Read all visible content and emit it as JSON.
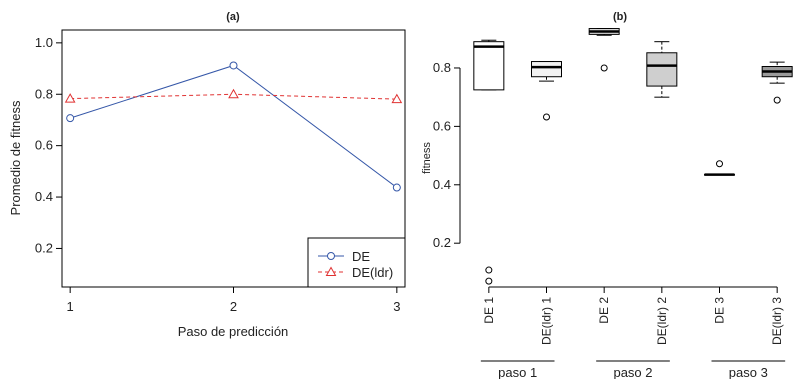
{
  "chart_data": [
    {
      "type": "line",
      "title": "(a)",
      "xlabel": "Paso de predicción",
      "ylabel": "Promedio de fitness",
      "x": [
        1,
        2,
        3
      ],
      "x_tick_labels": [
        "1",
        "2",
        "3"
      ],
      "y_ticks": [
        0.2,
        0.4,
        0.6,
        0.8,
        1.0
      ],
      "y_tick_labels": [
        "0.2",
        "0.4",
        "0.6",
        "0.8",
        "1.0"
      ],
      "xlim": [
        0.95,
        3.05
      ],
      "ylim": [
        0.05,
        1.05
      ],
      "legend": "bottom-right",
      "series": [
        {
          "name": "DE",
          "values": [
            0.707,
            0.912,
            0.437
          ],
          "color": "#3557a8",
          "line": "solid",
          "marker": "circle"
        },
        {
          "name": "DE(ldr)",
          "values": [
            0.783,
            0.8,
            0.781
          ],
          "color": "#e03232",
          "line": "dashed",
          "marker": "triangle"
        }
      ]
    },
    {
      "type": "box",
      "title": "(b)",
      "ylabel": "fitness",
      "y_ticks": [
        0.2,
        0.4,
        0.6,
        0.8
      ],
      "y_tick_labels": [
        "0.2",
        "0.4",
        "0.6",
        "0.8"
      ],
      "ylim": [
        0.05,
        0.93
      ],
      "categories": [
        "DE 1",
        "DE(ldr) 1",
        "DE 2",
        "DE(ldr) 2",
        "DE 3",
        "DE(ldr) 3"
      ],
      "groups": [
        {
          "label": "paso 1",
          "members": [
            0,
            1
          ]
        },
        {
          "label": "paso 2",
          "members": [
            2,
            3
          ]
        },
        {
          "label": "paso 3",
          "members": [
            4,
            5
          ]
        }
      ],
      "boxes": [
        {
          "min": 0.725,
          "q1": 0.725,
          "median": 0.873,
          "q3": 0.89,
          "max": 0.895,
          "outliers": [
            0.108,
            0.07
          ],
          "fill": "#ffffff"
        },
        {
          "min": 0.755,
          "q1": 0.77,
          "median": 0.803,
          "q3": 0.822,
          "max": 0.822,
          "outliers": [
            0.632
          ],
          "fill": "#f2f2f2"
        },
        {
          "min": 0.912,
          "q1": 0.915,
          "median": 0.925,
          "q3": 0.935,
          "max": 0.935,
          "outliers": [
            0.8
          ],
          "fill": "#dedede"
        },
        {
          "min": 0.7,
          "q1": 0.738,
          "median": 0.808,
          "q3": 0.852,
          "max": 0.89,
          "outliers": [],
          "fill": "#cfcfcf"
        },
        {
          "min": 0.435,
          "q1": 0.435,
          "median": 0.435,
          "q3": 0.435,
          "max": 0.435,
          "outliers": [
            0.472
          ],
          "fill": "#b8b8b8"
        },
        {
          "min": 0.748,
          "q1": 0.77,
          "median": 0.788,
          "q3": 0.805,
          "max": 0.82,
          "outliers": [
            0.69
          ],
          "fill": "#9a9a9a"
        }
      ]
    }
  ]
}
